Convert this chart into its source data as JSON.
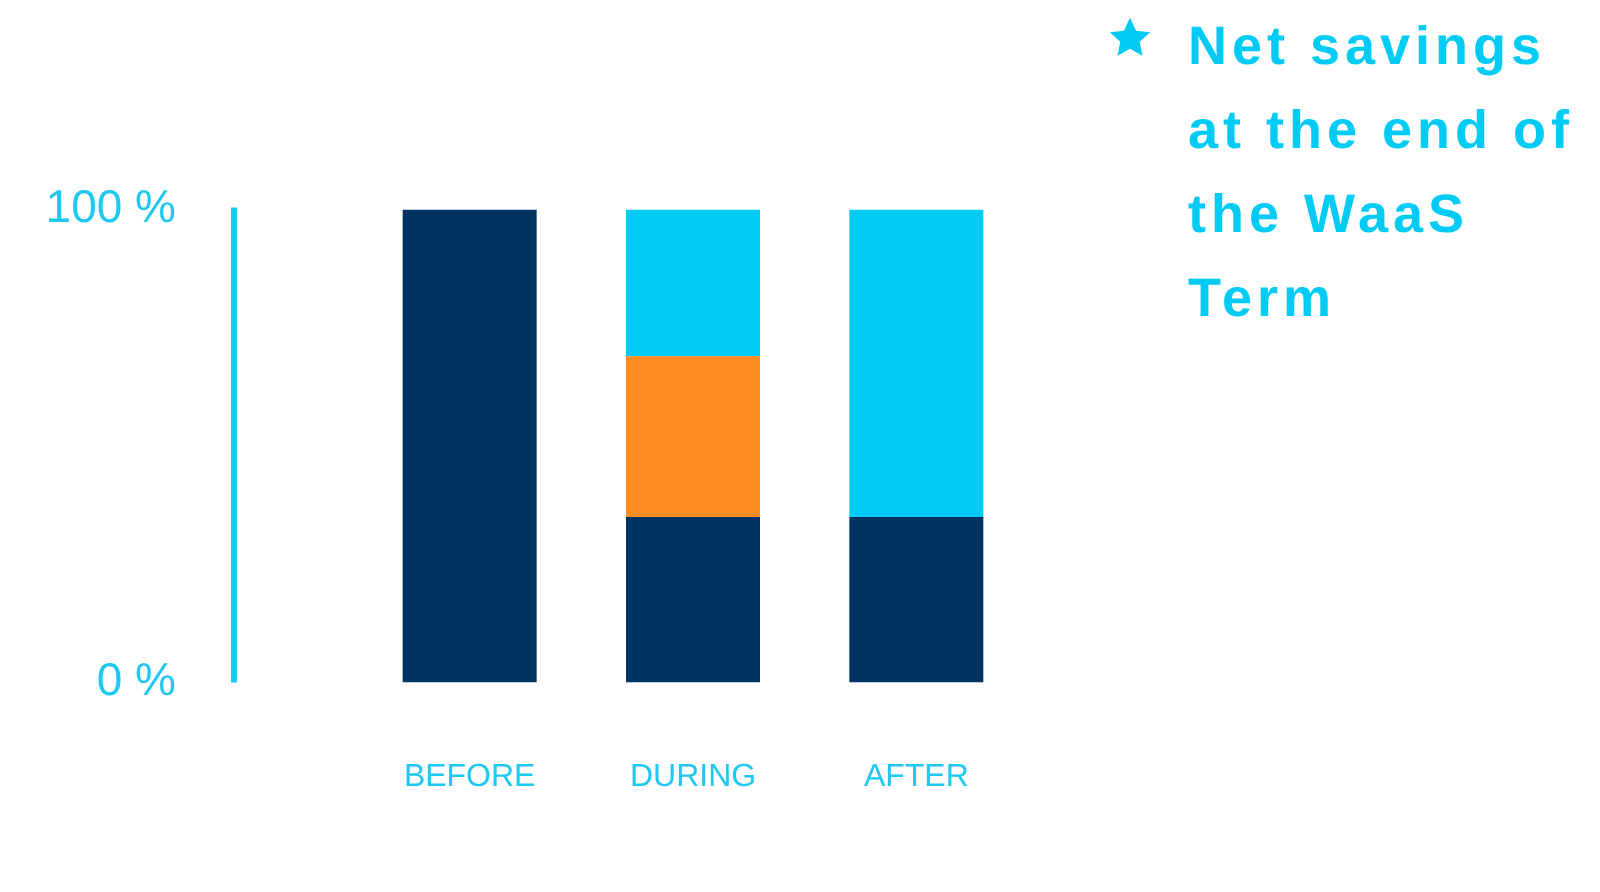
{
  "chart_data": {
    "type": "bar",
    "stacked": true,
    "categories": [
      "BEFORE",
      "DURING",
      "AFTER"
    ],
    "series": [
      {
        "color": "#003361",
        "values": [
          100,
          35,
          35
        ]
      },
      {
        "color": "#ff8c22",
        "values": [
          null,
          34,
          null
        ]
      },
      {
        "name": "Net savings at the end of the WaaS Term",
        "color": "#00cbf5",
        "values": [
          null,
          31,
          65
        ]
      }
    ],
    "ylim": [
      0,
      100
    ],
    "yticks": [
      {
        "value": 0,
        "label": "0 %"
      },
      {
        "value": 100,
        "label": "100 %"
      }
    ],
    "grid": false,
    "legend": "top right"
  }
}
